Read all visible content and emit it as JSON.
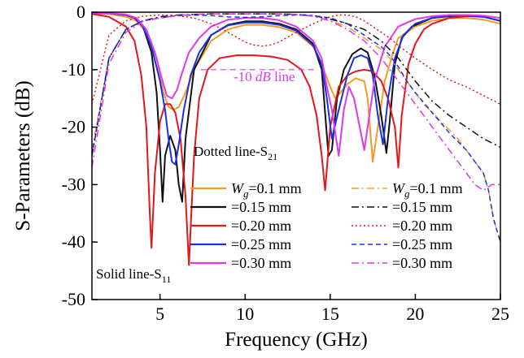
{
  "chart_data": {
    "type": "line",
    "xlabel": "Frequency (GHz)",
    "ylabel": "S-Parameters (dB)",
    "xlim": [
      1,
      25
    ],
    "ylim": [
      -50,
      0
    ],
    "xticks": [
      5,
      10,
      15,
      20,
      25
    ],
    "yticks": [
      0,
      -10,
      -20,
      -30,
      -40,
      -50
    ],
    "grid": false,
    "annotations": {
      "ref_line_prefix": "-10 ",
      "ref_line_unit": "dB",
      "ref_line_suffix": " line",
      "dotted_note": "Dotted line-S",
      "dotted_sub": "21",
      "solid_note": "Solid line-S",
      "solid_sub": "11"
    },
    "legend": {
      "placement": "bottom-right",
      "param_symbol": "W",
      "param_sub": "g",
      "solid_labels": [
        "=0.1 mm",
        "=0.15 mm",
        "=0.20 mm",
        "=0.25 mm",
        "=0.30 mm"
      ],
      "dotted_labels": [
        "=0.1 mm",
        "=0.15 mm",
        "=0.20 mm",
        "=0.25 mm",
        "=0.30 mm"
      ]
    },
    "series": [
      {
        "kind": "S11",
        "style": "solid",
        "color": "#F59A26",
        "x": [
          1,
          2,
          3,
          3.6,
          4.2,
          4.8,
          5.2,
          5.5,
          5.8,
          6.1,
          6.5,
          7,
          8,
          9,
          10,
          11,
          12,
          13,
          14,
          14.5,
          15,
          15.3,
          15.6,
          16,
          16.5,
          17,
          17.2,
          17.5,
          17.8,
          18.2,
          18.7,
          19,
          20,
          21,
          22,
          23,
          24,
          25
        ],
        "y": [
          -0.2,
          -0.3,
          -0.8,
          -1.5,
          -3.5,
          -8,
          -14,
          -16.5,
          -17,
          -16.5,
          -14,
          -10,
          -5,
          -3,
          -2.2,
          -2.2,
          -2.6,
          -3.5,
          -6,
          -9,
          -13,
          -15,
          -14,
          -12.5,
          -11.5,
          -12,
          -15,
          -26,
          -20,
          -12,
          -7,
          -4.5,
          -2.5,
          -1.5,
          -1,
          -1,
          -1.3,
          -2
        ]
      },
      {
        "kind": "S11",
        "style": "solid",
        "color": "#111111",
        "x": [
          1,
          2,
          3,
          3.5,
          4,
          4.5,
          4.8,
          5,
          5.15,
          5.3,
          5.6,
          5.9,
          6.1,
          6.3,
          6.5,
          7,
          8,
          9,
          10,
          11,
          12,
          13,
          14,
          14.5,
          14.9,
          15.1,
          15.4,
          15.8,
          16.3,
          16.8,
          17.2,
          17.6,
          18,
          18.3,
          18.5,
          18.8,
          19.2,
          19.8,
          21,
          22,
          23,
          24,
          25
        ],
        "y": [
          -0.1,
          -0.2,
          -0.5,
          -1,
          -2.5,
          -7,
          -14,
          -24,
          -33,
          -25,
          -21.5,
          -24,
          -30,
          -33,
          -22,
          -10,
          -4,
          -2.2,
          -1.6,
          -1.6,
          -2,
          -3,
          -5.5,
          -10,
          -25,
          -24,
          -15,
          -10,
          -7.3,
          -6.3,
          -7,
          -11,
          -18,
          -24.5,
          -19,
          -9,
          -4.5,
          -2.5,
          -1,
          -0.7,
          -0.6,
          -0.8,
          -1.5
        ]
      },
      {
        "kind": "S11",
        "style": "solid",
        "color": "#E3171B",
        "x": [
          1,
          2,
          3,
          3.5,
          3.9,
          4.2,
          4.4,
          4.5,
          4.7,
          5,
          5.3,
          5.6,
          5.9,
          6.2,
          6.5,
          6.7,
          7,
          7.3,
          7.8,
          8.5,
          9.5,
          10.5,
          11.5,
          12.5,
          13.3,
          13.8,
          14.2,
          14.5,
          14.7,
          15,
          15.5,
          16,
          16.5,
          17,
          17.5,
          18,
          18.4,
          18.8,
          19,
          19.2,
          19.6,
          20,
          20.5,
          21,
          22,
          23,
          24,
          25
        ],
        "y": [
          -0.3,
          -0.8,
          -2.5,
          -5,
          -11,
          -20,
          -35,
          -41,
          -28,
          -19,
          -16,
          -16,
          -17.5,
          -22,
          -32,
          -44,
          -25,
          -15,
          -10,
          -8,
          -7.5,
          -7.5,
          -7.7,
          -8.3,
          -10,
          -13,
          -18,
          -25,
          -31,
          -20,
          -13,
          -11,
          -10.3,
          -10,
          -10.3,
          -12,
          -15,
          -20,
          -27,
          -18,
          -9,
          -5.5,
          -3,
          -2,
          -1,
          -0.7,
          -0.8,
          -1.5
        ]
      },
      {
        "kind": "S11",
        "style": "solid",
        "color": "#1B31E6",
        "x": [
          1,
          2,
          3,
          3.5,
          4,
          4.5,
          5,
          5.3,
          5.5,
          5.7,
          5.9,
          6.1,
          6.4,
          6.8,
          7.3,
          8,
          9,
          10,
          11,
          12,
          13,
          14,
          14.5,
          14.8,
          15.1,
          15.5,
          16,
          16.4,
          16.8,
          17.2,
          17.5,
          17.8,
          18.1,
          18.4,
          18.8,
          19.3,
          20,
          21,
          22,
          23,
          24,
          25
        ],
        "y": [
          -0.1,
          -0.2,
          -0.5,
          -1,
          -2.5,
          -6,
          -12,
          -17,
          -22,
          -26,
          -26.5,
          -23,
          -17,
          -11,
          -7,
          -4,
          -2.3,
          -1.8,
          -1.8,
          -2.2,
          -3.2,
          -5.8,
          -9,
          -15,
          -22,
          -17,
          -11,
          -8,
          -7.5,
          -8,
          -11,
          -18,
          -23,
          -15,
          -8,
          -4,
          -2,
          -1,
          -0.6,
          -0.6,
          -0.8,
          -1.5
        ]
      },
      {
        "kind": "S11",
        "style": "solid",
        "color": "#DD39EC",
        "x": [
          1,
          2,
          3,
          3.6,
          4.2,
          4.7,
          5.1,
          5.4,
          5.7,
          6,
          6.3,
          6.7,
          7.3,
          8,
          9,
          10,
          11,
          12,
          13,
          14,
          14.5,
          14.8,
          15.1,
          15.3,
          15.5,
          15.8,
          16.1,
          16.4,
          16.8,
          17,
          17.2,
          17.6,
          18.2,
          19,
          20,
          21,
          22,
          23,
          24,
          25
        ],
        "y": [
          -0.1,
          -0.2,
          -0.4,
          -1,
          -3,
          -7,
          -11.5,
          -14.5,
          -15,
          -13.5,
          -10.5,
          -7,
          -4.5,
          -2.5,
          -1.3,
          -1,
          -1,
          -1.4,
          -2.5,
          -5,
          -8,
          -13,
          -17,
          -21,
          -25,
          -17,
          -13,
          -15,
          -21,
          -24,
          -20,
          -12,
          -6,
          -2.5,
          -1.2,
          -0.7,
          -0.5,
          -0.5,
          -0.6,
          -1
        ]
      },
      {
        "kind": "S21",
        "style": "dashdot",
        "color": "#F59A26",
        "x": [
          1,
          2,
          3,
          4,
          5,
          6,
          7,
          8,
          9,
          10,
          11,
          12,
          13,
          14,
          15,
          16,
          16.5,
          17,
          17.5,
          18,
          18.5,
          19,
          19.5,
          20,
          20.5,
          21,
          21.5,
          22,
          22.5,
          23,
          23.5,
          24,
          24.3,
          24.6,
          25
        ],
        "y": [
          -24,
          -8,
          -3,
          -1.5,
          -1,
          -0.6,
          -0.4,
          -0.3,
          -0.3,
          -0.3,
          -0.3,
          -0.3,
          -0.4,
          -0.7,
          -1.5,
          -2.5,
          -3.5,
          -4.5,
          -5.5,
          -6.5,
          -8,
          -10,
          -12,
          -14,
          -16,
          -17.5,
          -19,
          -20.5,
          -22,
          -24,
          -26,
          -28,
          -31,
          -36,
          -40
        ]
      },
      {
        "kind": "S21",
        "style": "dashdot",
        "color": "#111111",
        "x": [
          1,
          2,
          3,
          4,
          5,
          6,
          7,
          8,
          9,
          10,
          11,
          12,
          13,
          14,
          15,
          16,
          17,
          17.5,
          18,
          18.5,
          19,
          19.5,
          20,
          21,
          22,
          23,
          24,
          25
        ],
        "y": [
          -25,
          -8,
          -3,
          -1.5,
          -0.8,
          -0.5,
          -0.4,
          -0.3,
          -0.3,
          -0.3,
          -0.3,
          -0.3,
          -0.4,
          -0.6,
          -1.2,
          -2,
          -3,
          -4,
          -5,
          -6.5,
          -8,
          -10,
          -12,
          -15.5,
          -18,
          -20,
          -22,
          -23.5
        ]
      },
      {
        "kind": "S21",
        "style": "dotted",
        "color": "#E3171B",
        "x": [
          1,
          2,
          3,
          4,
          5,
          6,
          7,
          8,
          9,
          10,
          10.5,
          11,
          11.5,
          12,
          13,
          14,
          15,
          15.5,
          16,
          16.5,
          17,
          17.5,
          18,
          18.5,
          19,
          20,
          21,
          22,
          23,
          24,
          25
        ],
        "y": [
          -16,
          -4,
          -1.5,
          -0.7,
          -0.5,
          -0.6,
          -1,
          -2,
          -3.5,
          -5.2,
          -5.7,
          -5.9,
          -5.7,
          -5.2,
          -3.5,
          -2,
          -0.8,
          -0.5,
          -0.5,
          -0.8,
          -1.5,
          -2.5,
          -3.5,
          -4.5,
          -5.8,
          -8,
          -10,
          -11.8,
          -13,
          -14.5,
          -16
        ]
      },
      {
        "kind": "S21",
        "style": "dashed",
        "color": "#1B31E6",
        "x": [
          1,
          2,
          3,
          4,
          5,
          6,
          7,
          8,
          9,
          10,
          11,
          12,
          13,
          14,
          15,
          16,
          16.5,
          17,
          17.5,
          18,
          18.5,
          19,
          19.5,
          20,
          21,
          22,
          23,
          23.5,
          24,
          24.3,
          24.6,
          25
        ],
        "y": [
          -25,
          -8,
          -3,
          -1.5,
          -1,
          -0.6,
          -0.5,
          -0.6,
          -0.8,
          -0.9,
          -0.8,
          -0.6,
          -0.5,
          -0.6,
          -1,
          -2,
          -3,
          -4,
          -5,
          -6,
          -7.5,
          -9.5,
          -12,
          -14,
          -17.5,
          -21,
          -24,
          -26,
          -28,
          -31,
          -36,
          -40
        ]
      },
      {
        "kind": "S21",
        "style": "dashdot",
        "color": "#DD39EC",
        "x": [
          1,
          2,
          3,
          4,
          5,
          6,
          7,
          8,
          9,
          10,
          11,
          12,
          13,
          14,
          15,
          16,
          17,
          17.5,
          18,
          18.5,
          19,
          19.5,
          20,
          20.5,
          21,
          21.5,
          22,
          22.5,
          23,
          23.5,
          24,
          24.5,
          25
        ],
        "y": [
          -27,
          -9,
          -3.5,
          -1.6,
          -1,
          -0.6,
          -0.4,
          -0.3,
          -0.3,
          -0.3,
          -0.3,
          -0.3,
          -0.4,
          -0.7,
          -1.5,
          -3,
          -5,
          -6.5,
          -8,
          -10,
          -12,
          -14,
          -16,
          -18,
          -20,
          -22,
          -24,
          -26,
          -28,
          -30,
          -31,
          -30,
          -30
        ]
      }
    ]
  }
}
